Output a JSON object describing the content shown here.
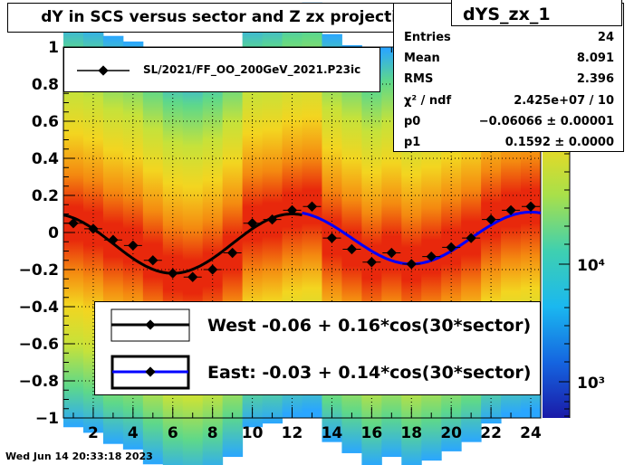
{
  "title": "dY in SCS versus sector and Z zx projection",
  "stats": {
    "name": "dYS_zx_1",
    "rows": [
      {
        "key": "Entries",
        "value": "24"
      },
      {
        "key": "Mean",
        "value": "8.091"
      },
      {
        "key": "RMS",
        "value": "2.396"
      },
      {
        "key": "χ² / ndf",
        "value": "2.425e+07 / 10"
      },
      {
        "key": "p0",
        "value": "−0.06066 ± 0.00001"
      },
      {
        "key": "p1",
        "value": "0.1592 ± 0.0000"
      }
    ]
  },
  "legend_top": "SL/2021/FF_OO_200GeV_2021.P23ic",
  "legend_main": [
    "West -0.06 +  0.16*cos(30*sector)",
    "East: -0.03 +  0.14*cos(30*sector)"
  ],
  "footer": "Wed Jun 14 20:33:18 2023",
  "colors": {
    "west": "#000000",
    "east": "#0000ff"
  },
  "chart_data": {
    "type": "scatter",
    "xlim": [
      0.5,
      24.5
    ],
    "ylim": [
      -1,
      1
    ],
    "x_ticks": [
      2,
      4,
      6,
      8,
      10,
      12,
      14,
      16,
      18,
      20,
      22,
      24
    ],
    "y_ticks": [
      -1,
      -0.8,
      -0.6,
      -0.4,
      -0.2,
      0,
      0.2,
      0.4,
      0.6,
      0.8,
      1
    ],
    "colorbar_ticks": [
      "10⁴",
      "10³"
    ],
    "points": [
      {
        "x": 1,
        "y": 0.05
      },
      {
        "x": 2,
        "y": 0.02
      },
      {
        "x": 3,
        "y": -0.04
      },
      {
        "x": 4,
        "y": -0.07
      },
      {
        "x": 5,
        "y": -0.15
      },
      {
        "x": 6,
        "y": -0.22
      },
      {
        "x": 7,
        "y": -0.24
      },
      {
        "x": 8,
        "y": -0.2
      },
      {
        "x": 9,
        "y": -0.11
      },
      {
        "x": 10,
        "y": 0.05
      },
      {
        "x": 11,
        "y": 0.07
      },
      {
        "x": 12,
        "y": 0.12
      },
      {
        "x": 13,
        "y": 0.14
      },
      {
        "x": 14,
        "y": -0.03
      },
      {
        "x": 15,
        "y": -0.09
      },
      {
        "x": 16,
        "y": -0.16
      },
      {
        "x": 17,
        "y": -0.11
      },
      {
        "x": 18,
        "y": -0.17
      },
      {
        "x": 19,
        "y": -0.13
      },
      {
        "x": 20,
        "y": -0.08
      },
      {
        "x": 21,
        "y": -0.03
      },
      {
        "x": 22,
        "y": 0.07
      },
      {
        "x": 23,
        "y": 0.12
      },
      {
        "x": 24,
        "y": 0.14
      }
    ],
    "fits": [
      {
        "name": "West",
        "p0": -0.06,
        "p1": 0.16,
        "xrange": [
          0.5,
          12.5
        ],
        "color": "#000000"
      },
      {
        "name": "East",
        "p0": -0.03,
        "p1": 0.14,
        "xrange": [
          12.5,
          24.5
        ],
        "color": "#0000ff"
      }
    ],
    "grid": true
  }
}
